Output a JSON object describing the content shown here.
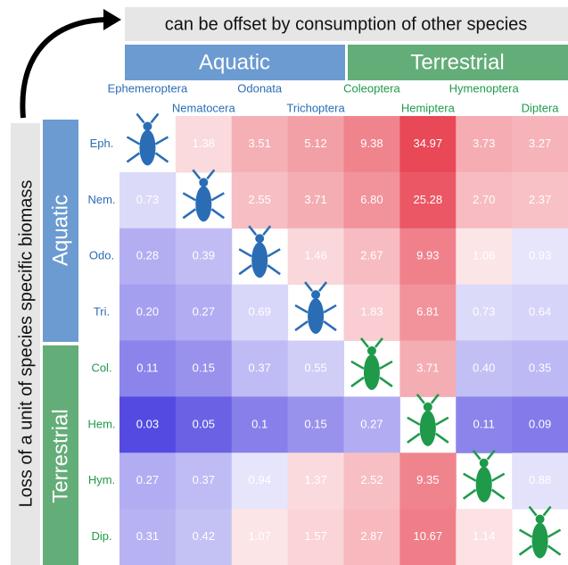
{
  "chart_data": {
    "type": "heatmap",
    "x_title": "can be offset by consumption of other species",
    "y_title": "Loss of a unit of species specific biomass",
    "groups": [
      "Aquatic",
      "Terrestrial"
    ],
    "group_colors": [
      "#6b9bd0",
      "#63ad78"
    ],
    "label_colors": [
      "#2a6db5",
      "#1e9a4a"
    ],
    "columns": [
      "Ephemeroptera",
      "Nematocera",
      "Odonata",
      "Trichoptera",
      "Coleoptera",
      "Hemiptera",
      "Hymenoptera",
      "Diptera"
    ],
    "rows": [
      "Eph.",
      "Nem.",
      "Odo.",
      "Tri.",
      "Col.",
      "Hem.",
      "Hym.",
      "Dip."
    ],
    "log_scale": true,
    "low_color": "#4a3fe0",
    "high_color": "#e8404f",
    "values": [
      [
        null,
        1.38,
        3.51,
        5.12,
        9.38,
        34.97,
        3.73,
        3.27
      ],
      [
        0.73,
        null,
        2.55,
        3.71,
        6.8,
        25.28,
        2.7,
        2.37
      ],
      [
        0.28,
        0.39,
        null,
        1.46,
        2.67,
        9.93,
        1.06,
        0.93
      ],
      [
        0.2,
        0.27,
        0.69,
        null,
        1.83,
        6.81,
        0.73,
        0.64
      ],
      [
        0.11,
        0.15,
        0.37,
        0.55,
        null,
        3.71,
        0.4,
        0.35
      ],
      [
        0.03,
        0.05,
        0.1,
        0.15,
        0.27,
        null,
        0.11,
        0.09
      ],
      [
        0.27,
        0.37,
        0.94,
        1.37,
        2.52,
        9.35,
        null,
        0.88
      ],
      [
        0.31,
        0.42,
        1.07,
        1.57,
        2.87,
        10.67,
        1.14,
        null
      ]
    ],
    "value_labels": [
      [
        null,
        "1.38",
        "3.51",
        "5.12",
        "9.38",
        "34.97",
        "3.73",
        "3.27"
      ],
      [
        "0.73",
        null,
        "2.55",
        "3.71",
        "6.80",
        "25.28",
        "2.70",
        "2.37"
      ],
      [
        "0.28",
        "0.39",
        null,
        "1.46",
        "2.67",
        "9.93",
        "1.06",
        "0.93"
      ],
      [
        "0.20",
        "0.27",
        "0.69",
        null,
        "1.83",
        "6.81",
        "0.73",
        "0.64"
      ],
      [
        "0.11",
        "0.15",
        "0.37",
        "0.55",
        null,
        "3.71",
        "0.40",
        "0.35"
      ],
      [
        "0.03",
        "0.05",
        "0.1",
        "0.15",
        "0.27",
        null,
        "0.11",
        "0.09"
      ],
      [
        "0.27",
        "0.37",
        "0.94",
        "1.37",
        "2.52",
        "9.35",
        null,
        "0.88"
      ],
      [
        "0.31",
        "0.42",
        "1.07",
        "1.57",
        "2.87",
        "10.67",
        "1.14",
        null
      ]
    ]
  }
}
